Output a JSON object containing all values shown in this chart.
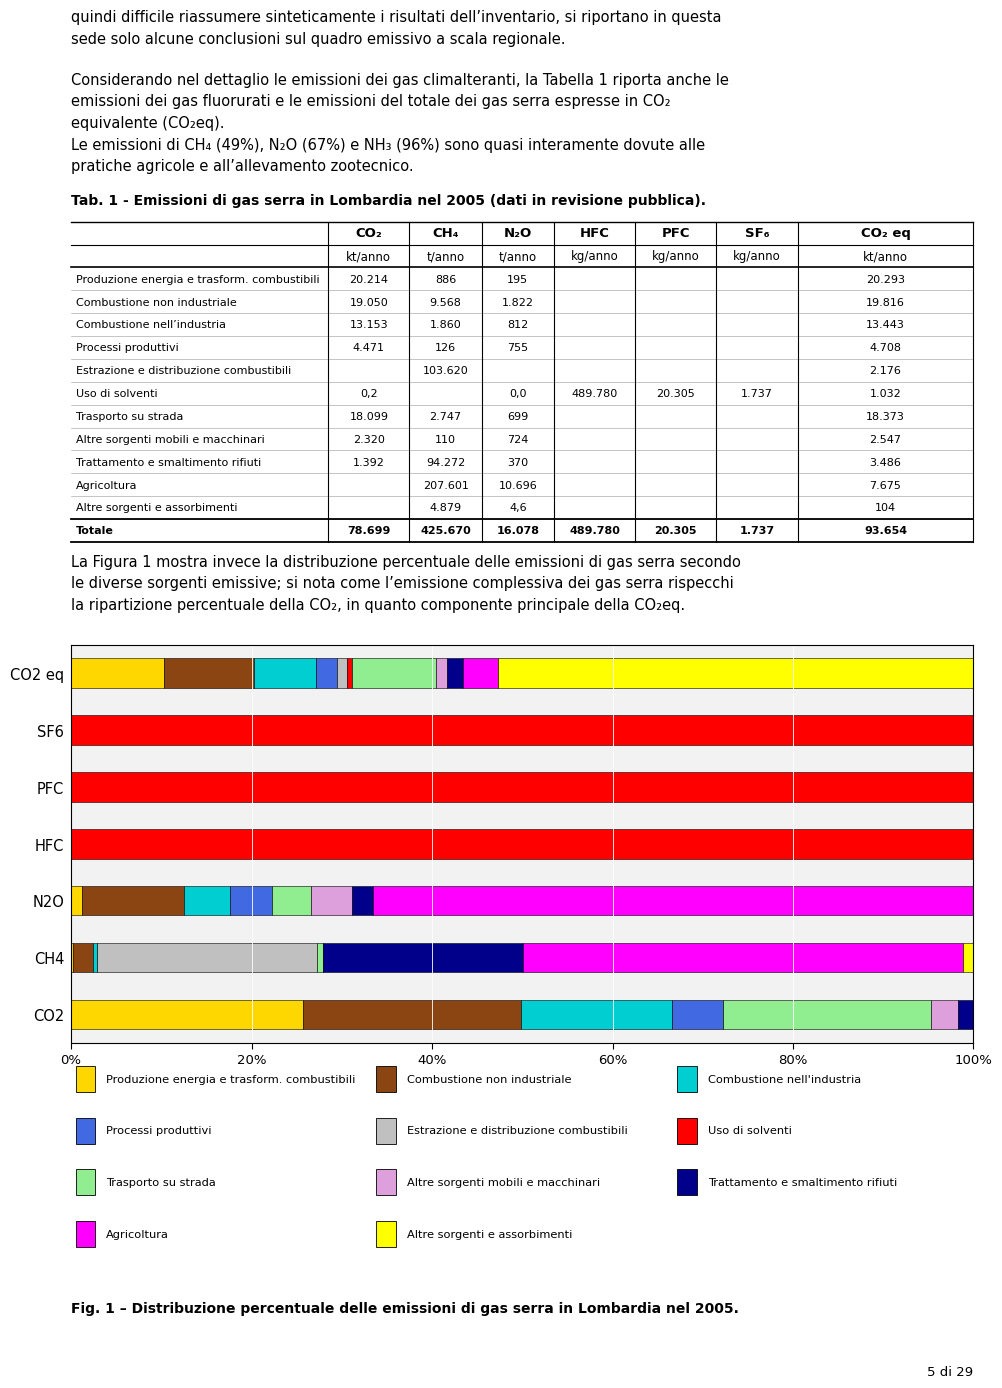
{
  "text_intro": "quindi difficile riassumere sinteticamente i risultati dell’inventario, si riportano in questa\nsede solo alcune conclusioni sul quadro emissivo a scala regionale.",
  "text_para": "Considerando nel dettaglio le emissioni dei gas climalteranti, la Tabella 1 riporta anche le\nemissioni dei gas fluorurati e le emissioni del totale dei gas serra espresse in CO₂\nequivalente (CO₂eq).\nLe emissioni di CH₄ (49%), N₂O (67%) e NH₃ (96%) sono quasi interamente dovute alle\npratiche agricole e all’allevamento zootecnico.",
  "tab_title": "Tab. 1 - Emissioni di gas serra in Lombardia nel 2005 (dati in revisione pubblica).",
  "col_headers": [
    "CO₂",
    "CH₄",
    "N₂O",
    "HFC",
    "PFC",
    "SF₆",
    "CO₂ eq"
  ],
  "col_units": [
    "kt/anno",
    "t/anno",
    "t/anno",
    "kg/anno",
    "kg/anno",
    "kg/anno",
    "kt/anno"
  ],
  "rows": [
    [
      "Produzione energia e trasform. combustibili",
      "20.214",
      "886",
      "195",
      "",
      "",
      "",
      "20.293"
    ],
    [
      "Combustione non industriale",
      "19.050",
      "9.568",
      "1.822",
      "",
      "",
      "",
      "19.816"
    ],
    [
      "Combustione nell’industria",
      "13.153",
      "1.860",
      "812",
      "",
      "",
      "",
      "13.443"
    ],
    [
      "Processi produttivi",
      "4.471",
      "126",
      "755",
      "",
      "",
      "",
      "4.708"
    ],
    [
      "Estrazione e distribuzione combustibili",
      "",
      "103.620",
      "",
      "",
      "",
      "",
      "2.176"
    ],
    [
      "Uso di solventi",
      "0,2",
      "",
      "0,0",
      "489.780",
      "20.305",
      "1.737",
      "1.032"
    ],
    [
      "Trasporto su strada",
      "18.099",
      "2.747",
      "699",
      "",
      "",
      "",
      "18.373"
    ],
    [
      "Altre sorgenti mobili e macchinari",
      "2.320",
      "110",
      "724",
      "",
      "",
      "",
      "2.547"
    ],
    [
      "Trattamento e smaltimento rifiuti",
      "1.392",
      "94.272",
      "370",
      "",
      "",
      "",
      "3.486"
    ],
    [
      "Agricoltura",
      "",
      "207.601",
      "10.696",
      "",
      "",
      "",
      "7.675"
    ],
    [
      "Altre sorgenti e assorbimenti",
      "",
      "4.879",
      "4,6",
      "",
      "",
      "",
      "104"
    ]
  ],
  "totale_row": [
    "Totale",
    "78.699",
    "425.670",
    "16.078",
    "489.780",
    "20.305",
    "1.737",
    "93.654"
  ],
  "text_fig": "La Figura 1 mostra invece la distribuzione percentuale delle emissioni di gas serra secondo\nle diverse sorgenti emissive; si nota come l’emissione complessiva dei gas serra rispecchi\nla ripartizione percentuale della CO₂, in quanto componente principale della CO₂eq.",
  "fig_title": "Fig. 1 – Distribuzione percentuale delle emissioni di gas serra in Lombardia nel 2005.",
  "page_num": "5 di 29",
  "bar_categories": [
    "CO2",
    "CH4",
    "N2O",
    "HFC",
    "PFC",
    "SF6",
    "CO2 eq"
  ],
  "legend_labels": [
    "Produzione energia e trasform. combustibili",
    "Combustione non industriale",
    "Combustione nell'industria",
    "Processi produttivi",
    "Estrazione e distribuzione combustibili",
    "Uso di solventi",
    "Trasporto su strada",
    "Altre sorgenti mobili e macchinari",
    "Trattamento e smaltimento rifiuti",
    "Agricoltura",
    "Altre sorgenti e assorbimenti"
  ],
  "bar_colors": [
    "#FFD700",
    "#8B4513",
    "#00CED1",
    "#4169E1",
    "#C0C0C0",
    "#FF0000",
    "#90EE90",
    "#DDA0DD",
    "#00008B",
    "#FF00FF",
    "#FFFF00"
  ],
  "raw_data": {
    "CO2": [
      20214,
      19050,
      13153,
      4471,
      0,
      0.2,
      18099,
      2320,
      1392,
      0,
      0
    ],
    "CH4": [
      886,
      9568,
      1860,
      126,
      103620,
      0,
      2747,
      110,
      94272,
      207601,
      4879
    ],
    "N2O": [
      195,
      1822,
      812,
      755,
      0,
      0.0,
      699,
      724,
      370,
      10696,
      4.6
    ],
    "HFC": [
      0,
      0,
      0,
      0,
      0,
      489780,
      0,
      0,
      0,
      0,
      0
    ],
    "PFC": [
      0,
      0,
      0,
      0,
      0,
      20305,
      0,
      0,
      0,
      0,
      0
    ],
    "SF6": [
      0,
      0,
      0,
      0,
      0,
      1737,
      0,
      0,
      0,
      0,
      0
    ],
    "CO2 eq": [
      20.293,
      19.816,
      13.443,
      4.708,
      2.176,
      1.032,
      18.373,
      2.547,
      3.486,
      7.675,
      104
    ]
  }
}
